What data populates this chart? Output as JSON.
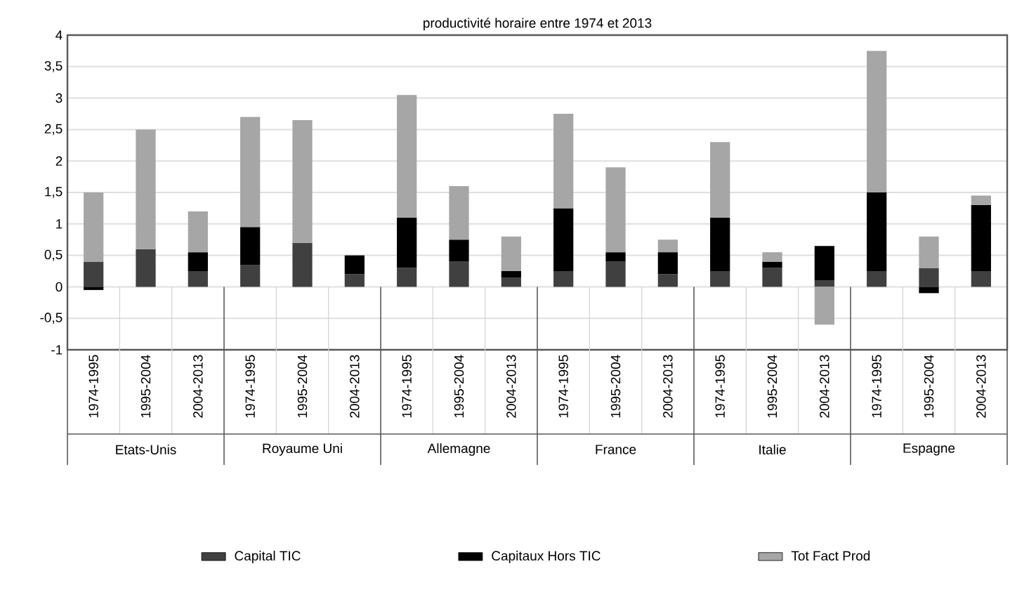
{
  "chart_data": {
    "type": "bar",
    "stacked": true,
    "title": "productivité horaire entre 1974 et 2013",
    "categories": [
      "1974-1995",
      "1995-2004",
      "2004-2013",
      "1974-1995",
      "1995-2004",
      "2004-2013",
      "1974-1995",
      "1995-2004",
      "2004-2013",
      "1974-1995",
      "1995-2004",
      "2004-2013",
      "1974-1995",
      "1995-2004",
      "2004-2013",
      "1974-1995",
      "1995-2004",
      "2004-2013"
    ],
    "series": [
      {
        "name": "Capital TIC",
        "color": "#404040",
        "values": [
          0.4,
          0.6,
          0.25,
          0.35,
          0.7,
          0.2,
          0.3,
          0.4,
          0.15,
          0.25,
          0.4,
          0.2,
          0.25,
          0.3,
          0.1,
          0.25,
          0.3,
          0.25
        ]
      },
      {
        "name": "Capitaux Hors TIC",
        "color": "#000000",
        "values": [
          -0.05,
          null,
          0.3,
          0.6,
          null,
          0.3,
          0.8,
          0.35,
          0.1,
          1.0,
          0.15,
          0.35,
          0.85,
          0.1,
          0.55,
          1.25,
          -0.1,
          1.05
        ]
      },
      {
        "name": "Tot Fact Prod",
        "color": "#a6a6a6",
        "values": [
          1.1,
          1.9,
          0.65,
          1.75,
          1.95,
          null,
          1.95,
          0.85,
          0.55,
          1.5,
          1.35,
          0.2,
          1.2,
          0.15,
          -0.6,
          2.25,
          0.5,
          0.15
        ]
      }
    ],
    "annotations": [
      "Etats-Unis",
      "Royaume Uni",
      "Allemagne",
      "France",
      "Italie",
      "Espagne"
    ],
    "ylim": [
      -1,
      4
    ],
    "yticks": [
      {
        "value": -1,
        "label": "-1"
      },
      {
        "value": -0.5,
        "label": "-0,5"
      },
      {
        "value": 0,
        "label": "0"
      },
      {
        "value": 0.5,
        "label": "0,5"
      },
      {
        "value": 1,
        "label": "1"
      },
      {
        "value": 1.5,
        "label": "1,5"
      },
      {
        "value": 2,
        "label": "2"
      },
      {
        "value": 2.5,
        "label": "2,5"
      },
      {
        "value": 3,
        "label": "3"
      },
      {
        "value": 3.5,
        "label": "3,5"
      },
      {
        "value": 4,
        "label": "4"
      }
    ],
    "grid": "y",
    "legend": "bottom"
  }
}
